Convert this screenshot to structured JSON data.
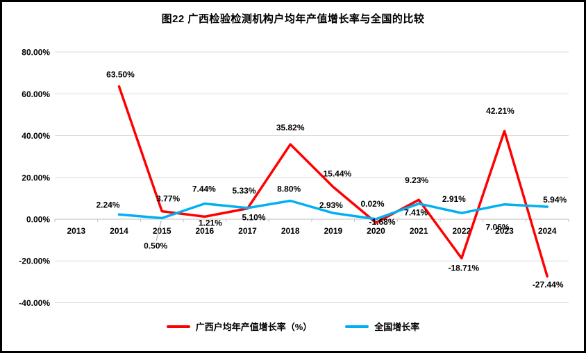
{
  "chart_data": {
    "type": "line",
    "title": "图22 广西检验检测机构户均年产值增长率与全国的比较",
    "categories": [
      "2013",
      "2014",
      "2015",
      "2016",
      "2017",
      "2018",
      "2019",
      "2020",
      "2021",
      "2022",
      "2023",
      "2024"
    ],
    "series": [
      {
        "name": "广西户均年产值增长率（%）",
        "color": "#FF0000",
        "values": [
          null,
          63.5,
          3.77,
          1.21,
          5.1,
          35.82,
          15.44,
          -1.68,
          9.23,
          -18.71,
          42.21,
          -27.44
        ],
        "labels": [
          null,
          "63.50%",
          "3.77%",
          "1.21%",
          "5.10%",
          "35.82%",
          "15.44%",
          "-1.68%",
          "9.23%",
          "-18.71%",
          "42.21%",
          "-27.44%"
        ]
      },
      {
        "name": "全国增长率",
        "color": "#00B0F0",
        "values": [
          null,
          2.24,
          0.5,
          7.44,
          5.33,
          8.8,
          2.93,
          0.02,
          7.41,
          2.91,
          7.06,
          5.94
        ],
        "labels": [
          null,
          "2.24%",
          "0.50%",
          "7.44%",
          "5.33%",
          "8.80%",
          "2.93%",
          "0.02%",
          "7.41%",
          "2.91%",
          "7.06%",
          "5.94%"
        ]
      }
    ],
    "ylim": [
      -40,
      80
    ],
    "ytick_step": 20,
    "ytick_labels": [
      "80.00%",
      "60.00%",
      "40.00%",
      "20.00%",
      "0.00%",
      "-20.00%",
      "-40.00%"
    ],
    "grid": true,
    "grid_color": "#D9D9D9",
    "axis_color": "#BFBFBF",
    "legend_position": "bottom"
  }
}
